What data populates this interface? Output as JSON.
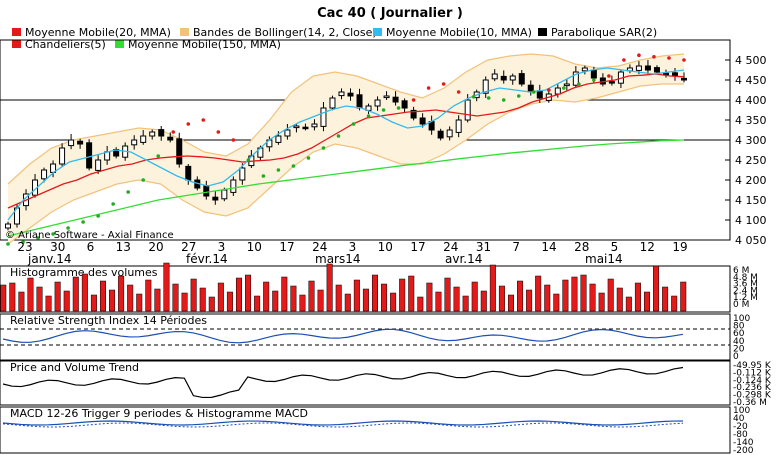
{
  "title": "Cac 40  ( Journalier )",
  "legend": [
    {
      "name": "Moyenne Mobile(20, MMA)",
      "color": "#e31a1a"
    },
    {
      "name": "Bandes de Bollinger(14, 2, Close)",
      "color": "#f2c27a"
    },
    {
      "name": "Moyenne Mobile(10, MMA)",
      "color": "#33bbee"
    },
    {
      "name": "Parabolique SAR(2)",
      "color": "#000000"
    },
    {
      "name": "Chandeliers(5)",
      "color": "#e31a1a"
    },
    {
      "name": "Moyenne Mobile(150, MMA)",
      "color": "#33dd33"
    }
  ],
  "copyright": "© Ariane Software - Axial Finance",
  "panels": {
    "volume": {
      "title": "Histogramme des volumes",
      "ticks": [
        "6 M",
        "4.8 M",
        "3.6 M",
        "2.4 M",
        "1.2 M",
        "0 M"
      ]
    },
    "rsi": {
      "title": "Relative Strength Index 14 Périodes",
      "ticks": [
        "100",
        "80",
        "60",
        "40",
        "20",
        "0"
      ]
    },
    "pvt": {
      "title": "Price and Volume Trend",
      "ticks": [
        "-49.95 K",
        "-0.112 K",
        "-0.124 K",
        "-0.236 K",
        "-0.298 K",
        "-0.36 M"
      ]
    },
    "macd": {
      "title": "MACD 12-26   Trigger 9 periodes & Histogramme MACD",
      "ticks": [
        "100",
        "40",
        "-20",
        "-80",
        "-140",
        "-200"
      ]
    }
  },
  "x_day_labels": [
    "23",
    "30",
    "6",
    "13",
    "20",
    "27",
    "3",
    "10",
    "17",
    "24",
    "3",
    "10",
    "17",
    "24",
    "31",
    "7",
    "14",
    "28",
    "5",
    "12",
    "19"
  ],
  "x_month_labels": [
    "janv.14",
    "févr.14",
    "mars14",
    "avr.14",
    "mai14"
  ],
  "chart_data": {
    "type": "line",
    "ylim": [
      4050,
      4550
    ],
    "yticks": [
      4050,
      4100,
      4150,
      4200,
      4250,
      4300,
      4350,
      4400,
      4450,
      4500
    ],
    "ytick_labels": [
      "4 050",
      "4 100",
      "4 150",
      "4 200",
      "4 250",
      "4 300",
      "4 350",
      "4 400",
      "4 450",
      "4 500"
    ],
    "horizontal_lines": [
      4400,
      4300
    ],
    "close": [
      4090,
      4130,
      4165,
      4200,
      4225,
      4240,
      4280,
      4300,
      4290,
      4230,
      4250,
      4270,
      4260,
      4285,
      4300,
      4310,
      4320,
      4310,
      4300,
      4240,
      4200,
      4180,
      4160,
      4150,
      4175,
      4200,
      4230,
      4260,
      4280,
      4300,
      4310,
      4325,
      4335,
      4330,
      4340,
      4380,
      4405,
      4420,
      4410,
      4380,
      4385,
      4400,
      4410,
      4395,
      4380,
      4355,
      4340,
      4325,
      4305,
      4325,
      4350,
      4400,
      4420,
      4450,
      4465,
      4450,
      4460,
      4440,
      4420,
      4405,
      4415,
      4430,
      4440,
      4470,
      4480,
      4455,
      4440,
      4445,
      4470,
      4480,
      4485,
      4475,
      4470,
      4465,
      4460,
      4450
    ],
    "ma20": [
      4130,
      4145,
      4160,
      4175,
      4190,
      4200,
      4215,
      4225,
      4235,
      4240,
      4250,
      4255,
      4258,
      4260,
      4258,
      4255,
      4250,
      4245,
      4248,
      4250,
      4255,
      4265,
      4280,
      4300,
      4320,
      4340,
      4355,
      4360,
      4365,
      4370,
      4372,
      4375,
      4370,
      4365,
      4360,
      4365,
      4370,
      4380,
      4395,
      4405,
      4415,
      4430,
      4440,
      4445,
      4450,
      4460,
      4462,
      4465,
      4460,
      4458
    ],
    "ma10": [
      4100,
      4150,
      4185,
      4220,
      4245,
      4255,
      4265,
      4275,
      4270,
      4250,
      4230,
      4210,
      4195,
      4185,
      4195,
      4225,
      4265,
      4300,
      4325,
      4345,
      4360,
      4375,
      4385,
      4380,
      4365,
      4345,
      4330,
      4335,
      4355,
      4385,
      4405,
      4420,
      4430,
      4425,
      4420,
      4425,
      4445,
      4465,
      4475,
      4480,
      4475,
      4470,
      4465,
      4470,
      4475
    ],
    "ma150": [
      4060,
      4075,
      4090,
      4105,
      4120,
      4135,
      4150,
      4160,
      4170,
      4180,
      4190,
      4198,
      4206,
      4214,
      4222,
      4230,
      4238,
      4245,
      4253,
      4260,
      4267,
      4273,
      4279,
      4285,
      4290,
      4294,
      4298,
      4300
    ],
    "bollinger_upper": [
      4190,
      4240,
      4280,
      4300,
      4310,
      4320,
      4330,
      4325,
      4300,
      4270,
      4260,
      4290,
      4350,
      4420,
      4460,
      4470,
      4460,
      4440,
      4420,
      4405,
      4430,
      4470,
      4500,
      4510,
      4515,
      4510,
      4490,
      4480,
      4485,
      4500,
      4510,
      4515
    ],
    "bollinger_lower": [
      4040,
      4080,
      4120,
      4150,
      4170,
      4190,
      4200,
      4190,
      4150,
      4120,
      4110,
      4130,
      4180,
      4230,
      4270,
      4290,
      4280,
      4260,
      4240,
      4240,
      4265,
      4300,
      4340,
      4370,
      4390,
      4400,
      4395,
      4405,
      4420,
      4435,
      4440,
      4440
    ],
    "sar": [
      4040,
      4045,
      4055,
      4065,
      4080,
      4095,
      4110,
      4140,
      4170,
      4200,
      4260,
      4320,
      4340,
      4350,
      4320,
      4300,
      4250,
      4210,
      4225,
      4235,
      4255,
      4280,
      4310,
      4340,
      4360,
      4375,
      4380,
      4400,
      4430,
      4440,
      4420,
      4408,
      4405,
      4400,
      4410,
      4420,
      4425,
      4430,
      4440,
      4450,
      4460,
      4500,
      4512,
      4508,
      4505,
      4500
    ]
  }
}
